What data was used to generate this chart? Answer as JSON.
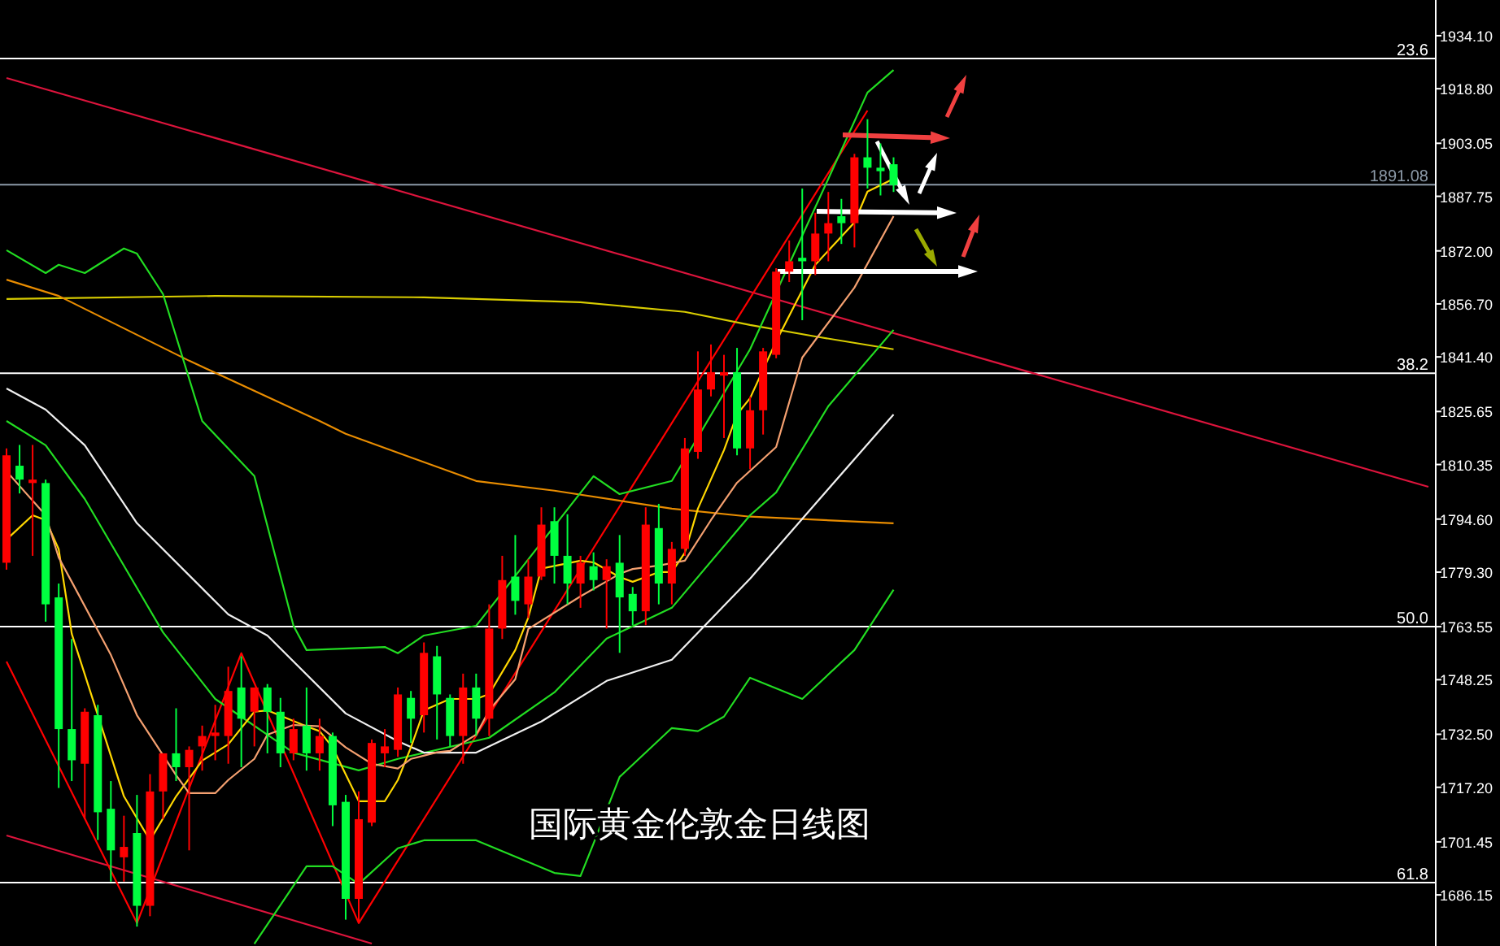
{
  "chart_data": {
    "type": "candlestick",
    "title": "国际黄金伦敦金日线图",
    "categories": [
      null,
      null,
      null,
      null,
      null,
      null,
      null,
      null,
      null,
      null,
      null,
      null,
      null,
      null,
      null,
      null,
      null,
      null,
      null,
      null,
      null,
      null,
      null,
      null,
      null,
      null,
      null,
      null,
      null,
      null,
      null,
      null,
      null,
      null,
      null,
      null,
      null,
      null,
      null,
      null,
      null,
      null,
      null,
      null,
      null,
      null,
      null,
      null,
      null,
      null,
      null,
      null,
      null,
      null,
      null,
      null,
      null,
      null,
      null,
      null,
      null,
      null,
      null,
      null,
      null,
      null,
      null,
      null,
      null,
      null,
      null,
      null,
      null,
      null,
      null,
      null,
      null,
      null,
      null,
      null,
      null,
      null,
      null,
      null,
      null,
      null,
      null,
      null,
      null,
      null,
      null,
      null,
      null,
      null,
      null,
      null,
      null,
      null,
      null,
      null,
      null,
      null,
      null,
      null,
      null,
      null,
      null,
      null,
      null,
      null
    ],
    "ohlc": [
      [
        1782,
        1815,
        1780,
        1813
      ],
      [
        1810,
        1816,
        1802,
        1806
      ],
      [
        1805,
        1816,
        1784,
        1806
      ],
      [
        1805,
        1806,
        1765,
        1770
      ],
      [
        1772,
        1776,
        1717,
        1734
      ],
      [
        1734,
        1760,
        1719,
        1725
      ],
      [
        1724,
        1740,
        1708,
        1739
      ],
      [
        1738,
        1741,
        1702,
        1710
      ],
      [
        1711,
        1719,
        1690,
        1699
      ],
      [
        1697,
        1709,
        1690,
        1700
      ],
      [
        1704,
        1715,
        1677,
        1683
      ],
      [
        1683,
        1721,
        1680,
        1716
      ],
      [
        1716,
        1727,
        1708,
        1727
      ],
      [
        1727,
        1740,
        1719,
        1723
      ],
      [
        1723,
        1729,
        1699,
        1728
      ],
      [
        1729,
        1735,
        1722,
        1732
      ],
      [
        1732,
        1741,
        1725,
        1733
      ],
      [
        1732,
        1752,
        1724,
        1745
      ],
      [
        1746,
        1755,
        1723,
        1737
      ],
      [
        1739,
        1746,
        1729,
        1746
      ],
      [
        1746,
        1747,
        1727,
        1739
      ],
      [
        1739,
        1743,
        1723,
        1727
      ],
      [
        1727,
        1737,
        1725,
        1734
      ],
      [
        1735,
        1746,
        1722,
        1727
      ],
      [
        1727,
        1737,
        1722,
        1732
      ],
      [
        1732,
        1733,
        1706,
        1712
      ],
      [
        1713,
        1715,
        1679,
        1685
      ],
      [
        1685,
        1716,
        1678,
        1708
      ],
      [
        1707,
        1731,
        1706,
        1730
      ],
      [
        1727,
        1734,
        1723,
        1729
      ],
      [
        1728,
        1746,
        1726,
        1744
      ],
      [
        1743,
        1745,
        1730,
        1737
      ],
      [
        1738,
        1759,
        1733,
        1756
      ],
      [
        1755,
        1758,
        1731,
        1744
      ],
      [
        1743,
        1744,
        1729,
        1732
      ],
      [
        1732,
        1750,
        1724,
        1746
      ],
      [
        1746,
        1750,
        1732,
        1737
      ],
      [
        1737,
        1770,
        1732,
        1763
      ],
      [
        1763,
        1784,
        1760,
        1777
      ],
      [
        1778,
        1790,
        1767,
        1771
      ],
      [
        1770,
        1783,
        1766,
        1778
      ],
      [
        1778,
        1798,
        1777,
        1793
      ],
      [
        1794,
        1798,
        1776,
        1784
      ],
      [
        1784,
        1796,
        1770,
        1776
      ],
      [
        1776,
        1784,
        1769,
        1782
      ],
      [
        1781,
        1785,
        1774,
        1777
      ],
      [
        1777,
        1783,
        1763,
        1781
      ],
      [
        1782,
        1790,
        1756,
        1772
      ],
      [
        1773,
        1775,
        1764,
        1768
      ],
      [
        1768,
        1798,
        1764,
        1793
      ],
      [
        1792,
        1799,
        1770,
        1776
      ],
      [
        1776,
        1788,
        1770,
        1786
      ],
      [
        1786,
        1818,
        1784,
        1815
      ],
      [
        1814,
        1843,
        1812,
        1832
      ],
      [
        1832,
        1845,
        1830,
        1837
      ],
      [
        1836,
        1842,
        1818,
        1837
      ],
      [
        1837,
        1844,
        1813,
        1815
      ],
      [
        1815,
        1830,
        1809,
        1826
      ],
      [
        1826,
        1844,
        1819,
        1843
      ],
      [
        1842,
        1867,
        1841,
        1866
      ],
      [
        1866,
        1875,
        1863,
        1869
      ],
      [
        1870,
        1890,
        1852,
        1869
      ],
      [
        1869,
        1883,
        1865,
        1877
      ],
      [
        1877,
        1889,
        1869,
        1880
      ],
      [
        1882,
        1887,
        1874,
        1880
      ],
      [
        1880,
        1900,
        1873,
        1899
      ],
      [
        1899,
        1910,
        1890,
        1896
      ],
      [
        1896,
        1903,
        1888,
        1895
      ],
      [
        1897,
        1899,
        1889,
        1891
      ],
      null,
      null,
      null,
      null,
      null,
      null,
      null,
      null,
      null,
      null,
      null,
      null,
      null,
      null,
      null,
      null,
      null,
      null,
      null,
      null,
      null,
      null,
      null,
      null,
      null,
      null,
      null,
      null,
      null,
      null,
      null,
      null,
      null,
      null,
      null,
      null,
      null,
      null,
      null,
      null,
      null
    ],
    "colors": [
      "#ff0000",
      "#00ff40",
      "#ff0000",
      "#00ff40",
      "#00ff40",
      "#00ff40",
      "#ff0000",
      "#00ff40",
      "#00ff40",
      "#ff0000",
      "#00ff40",
      "#ff0000",
      "#ff0000",
      "#00ff40",
      "#ff0000",
      "#ff0000",
      "#ff0000",
      "#ff0000",
      "#00ff40",
      "#ff0000",
      "#00ff40",
      "#00ff40",
      "#ff0000",
      "#00ff40",
      "#ff0000",
      "#00ff40",
      "#00ff40",
      "#ff0000",
      "#ff0000",
      "#ff0000",
      "#ff0000",
      "#00ff40",
      "#ff0000",
      "#00ff40",
      "#00ff40",
      "#ff0000",
      "#00ff40",
      "#ff0000",
      "#ff0000",
      "#00ff40",
      "#ff0000",
      "#ff0000",
      "#00ff40",
      "#00ff40",
      "#ff0000",
      "#00ff40",
      "#ff0000",
      "#00ff40",
      "#00ff40",
      "#ff0000",
      "#00ff40",
      "#ff0000",
      "#ff0000",
      "#ff0000",
      "#ff0000",
      "#ff0000",
      "#00ff40",
      "#ff0000",
      "#ff0000",
      "#ff0000",
      "#ff0000",
      "#00ff40",
      "#ff0000",
      "#ff0000",
      "#00ff40",
      "#ff0000",
      "#00ff40",
      "#00ff40",
      "#00ff40",
      null,
      null,
      null,
      null,
      null,
      null,
      null,
      null,
      null,
      null,
      null,
      null,
      null,
      null,
      null,
      null,
      null,
      null,
      null,
      null,
      null,
      null,
      null,
      null,
      null,
      null,
      null,
      null,
      null,
      null,
      null,
      null,
      null,
      null,
      null,
      null,
      null,
      null,
      null,
      null,
      null
    ],
    "series": [
      {
        "type": "line",
        "color": "#dc143c",
        "values": [
          1921.9,
          null,
          null,
          null,
          null,
          null,
          null,
          null,
          null,
          null,
          null,
          null,
          null,
          null,
          null,
          null,
          null,
          null,
          null,
          null,
          null,
          null,
          null,
          null,
          null,
          null,
          null,
          null,
          null,
          null,
          null,
          null,
          null,
          null,
          null,
          null,
          null,
          null,
          null,
          null,
          null,
          null,
          null,
          null,
          null,
          null,
          null,
          null,
          null,
          null,
          null,
          null,
          null,
          null,
          null,
          null,
          null,
          null,
          null,
          null,
          null,
          null,
          null,
          null,
          null,
          null,
          null,
          null,
          null,
          null,
          null,
          null,
          null,
          null,
          null,
          null,
          null,
          null,
          null,
          null,
          null,
          null,
          null,
          null,
          null,
          null,
          null,
          null,
          null,
          null,
          null,
          null,
          null,
          null,
          null,
          null,
          null,
          null,
          null,
          null,
          null,
          null,
          null,
          null,
          null,
          null,
          null,
          null,
          null,
          1803.9
        ]
      },
      {
        "type": "line",
        "color": "#dc143c",
        "values": [
          1703.3,
          null,
          null,
          null,
          null,
          null,
          null,
          null,
          null,
          null,
          null,
          null,
          null,
          null,
          null,
          null,
          null,
          null,
          null,
          null,
          null,
          null,
          null,
          null,
          null,
          null,
          null,
          null,
          1672.1,
          null,
          null,
          null,
          null,
          null,
          null,
          null,
          null,
          null,
          null,
          null,
          null,
          null,
          null,
          null,
          null,
          null,
          null,
          null,
          null,
          null,
          null,
          null,
          null,
          null,
          null,
          null,
          null,
          null,
          null,
          null,
          null,
          null,
          null,
          null,
          null,
          null,
          null,
          null,
          null,
          null,
          null,
          null,
          null,
          null,
          null,
          null,
          null,
          null,
          null,
          null,
          null,
          null,
          null,
          null,
          null,
          null,
          null,
          null,
          null,
          null,
          null,
          null,
          null,
          null,
          null,
          null,
          null,
          null,
          null,
          null,
          null,
          null,
          null,
          null,
          null,
          null,
          null,
          null,
          null,
          null
        ]
      },
      {
        "type": "line",
        "color": "#ff0000",
        "values": [
          1753.5,
          null,
          null,
          null,
          null,
          null,
          null,
          null,
          null,
          null,
          1678.0,
          null,
          null,
          null,
          null,
          null,
          null,
          null,
          1755.9,
          null,
          null,
          null,
          null,
          null,
          null,
          null,
          null,
          1678.0,
          null,
          null,
          null,
          null,
          null,
          null,
          null,
          null,
          null,
          null,
          null,
          null,
          null,
          null,
          null,
          null,
          null,
          null,
          null,
          null,
          null,
          null,
          null,
          null,
          null,
          null,
          null,
          null,
          null,
          null,
          null,
          null,
          null,
          null,
          null,
          null,
          null,
          null,
          1912.5,
          null,
          null,
          null,
          null,
          null,
          null,
          null,
          null,
          null,
          null,
          null,
          null,
          null,
          null,
          null,
          null,
          null,
          null,
          null,
          null,
          null,
          null,
          null,
          null,
          null,
          null,
          null,
          null,
          null,
          null,
          null,
          null,
          null,
          null,
          null,
          null,
          null,
          null,
          null,
          null,
          null,
          null,
          null
        ]
      },
      {
        "type": "line",
        "color": "#d8cc00",
        "values": [
          1858.1,
          null,
          null,
          null,
          null,
          null,
          null,
          null,
          null,
          null,
          null,
          null,
          null,
          null,
          null,
          null,
          1859.0,
          null,
          null,
          null,
          null,
          null,
          null,
          null,
          null,
          null,
          null,
          null,
          null,
          null,
          null,
          null,
          1858.6,
          null,
          null,
          null,
          null,
          null,
          null,
          null,
          null,
          null,
          null,
          null,
          1857.2,
          null,
          null,
          null,
          null,
          null,
          null,
          null,
          1854.4,
          null,
          null,
          null,
          null,
          1850.6,
          null,
          null,
          null,
          null,
          1847.3,
          null,
          null,
          null,
          null,
          null,
          1843.6,
          null,
          null,
          null,
          null,
          null,
          null,
          null,
          null,
          null,
          null,
          null,
          null,
          null,
          null,
          null,
          null,
          null,
          null,
          null,
          null,
          null,
          null,
          null,
          null,
          null,
          null,
          null,
          null,
          null,
          null,
          null,
          null,
          null,
          null,
          null,
          null,
          null,
          null,
          null,
          null,
          null
        ]
      },
      {
        "type": "line",
        "color": "#e88c00",
        "values": [
          1863.7,
          null,
          null,
          null,
          1859.0,
          null,
          null,
          null,
          null,
          null,
          null,
          null,
          null,
          null,
          1840.3,
          null,
          null,
          null,
          null,
          null,
          null,
          null,
          null,
          null,
          1822.9,
          null,
          1819.2,
          null,
          null,
          null,
          null,
          null,
          null,
          null,
          null,
          null,
          1805.6,
          null,
          null,
          null,
          null,
          null,
          1802.8,
          null,
          null,
          null,
          null,
          null,
          null,
          null,
          null,
          1797.6,
          null,
          null,
          null,
          null,
          null,
          1795.3,
          null,
          null,
          null,
          null,
          null,
          null,
          null,
          null,
          null,
          null,
          1793.4,
          null,
          null,
          null,
          null,
          null,
          null,
          null,
          null,
          null,
          null,
          null,
          null,
          null,
          null,
          null,
          null,
          null,
          null,
          null,
          null,
          null,
          null,
          null,
          null,
          null,
          null,
          null,
          null,
          null,
          null,
          null,
          null,
          null,
          null,
          null,
          null,
          null,
          null,
          null,
          null,
          null
        ]
      },
      {
        "type": "line",
        "color": "#22dd22",
        "values": [
          1872.2,
          null,
          null,
          1865.6,
          1868.0,
          null,
          1865.6,
          null,
          null,
          1872.7,
          1871.2,
          null,
          1859.5,
          null,
          null,
          1822.9,
          null,
          null,
          null,
          1807.0,
          null,
          null,
          1763.8,
          1756.8,
          null,
          null,
          null,
          null,
          null,
          1757.7,
          1755.9,
          null,
          1761.0,
          null,
          null,
          null,
          1763.8,
          null,
          null,
          null,
          null,
          null,
          null,
          null,
          null,
          1807.0,
          null,
          1801.8,
          null,
          null,
          null,
          1805.6,
          null,
          null,
          null,
          null,
          null,
          1843.6,
          null,
          null,
          null,
          null,
          null,
          1892.8,
          null,
          null,
          1917.7,
          null,
          1924.2,
          null,
          null,
          null,
          null,
          null,
          null,
          null,
          null,
          null,
          null,
          null,
          null,
          null,
          null,
          null,
          null,
          null,
          null,
          null,
          null,
          null,
          null,
          null,
          null,
          null,
          null,
          null,
          null,
          null,
          null,
          null,
          null,
          null,
          null,
          null,
          null,
          null,
          null,
          null,
          null,
          null
        ]
      },
      {
        "type": "line",
        "color": "#22dd22",
        "values": [
          null,
          null,
          null,
          null,
          null,
          null,
          null,
          null,
          null,
          null,
          null,
          null,
          null,
          null,
          null,
          null,
          null,
          null,
          null,
          1672.0,
          null,
          null,
          null,
          1694.4,
          null,
          1694.4,
          null,
          1689.3,
          null,
          null,
          1699.6,
          null,
          1701.9,
          null,
          null,
          null,
          1701.9,
          null,
          null,
          null,
          null,
          null,
          1692.5,
          null,
          1691.6,
          1701.0,
          null,
          1720.2,
          null,
          null,
          null,
          1734.3,
          null,
          1733.4,
          null,
          1737.6,
          null,
          1748.8,
          null,
          null,
          null,
          1742.7,
          null,
          null,
          null,
          1756.8,
          null,
          null,
          1774.2,
          null,
          null,
          null,
          null,
          null,
          null,
          null,
          null,
          null,
          null,
          null,
          null,
          null,
          null,
          null,
          null,
          null,
          null,
          null,
          null,
          null,
          null,
          null,
          null,
          null,
          null,
          null,
          null,
          null,
          null,
          null,
          null,
          null,
          null,
          null,
          null,
          null,
          null,
          null,
          null,
          null
        ]
      },
      {
        "type": "line",
        "color": "#22dd22",
        "values": [
          1822.9,
          null,
          null,
          1815.9,
          null,
          null,
          1800.4,
          null,
          null,
          null,
          null,
          null,
          1761.9,
          null,
          null,
          null,
          1742.7,
          null,
          null,
          null,
          null,
          null,
          1727.2,
          null,
          null,
          null,
          null,
          1722.1,
          null,
          null,
          1725.4,
          null,
          null,
          null,
          null,
          null,
          null,
          1731.5,
          null,
          null,
          null,
          null,
          1744.6,
          null,
          null,
          null,
          1760.1,
          null,
          null,
          null,
          null,
          1769.0,
          null,
          null,
          null,
          null,
          null,
          1795.7,
          null,
          1802.3,
          null,
          null,
          null,
          1827.2,
          null,
          null,
          null,
          null,
          1849.2,
          null,
          null,
          null,
          null,
          null,
          null,
          null,
          null,
          null,
          null,
          null,
          null,
          null,
          null,
          null,
          null,
          null,
          null,
          null,
          null,
          null,
          null,
          null,
          null,
          null,
          null,
          null,
          null,
          null,
          null,
          null,
          null,
          null,
          null,
          null,
          null,
          null,
          null,
          null,
          null,
          null
        ]
      },
      {
        "type": "line",
        "color": "#f0f0f0",
        "values": [
          1832.3,
          null,
          null,
          1826.2,
          null,
          null,
          1815.9,
          null,
          null,
          null,
          1793.4,
          null,
          null,
          null,
          null,
          null,
          null,
          1767.1,
          null,
          null,
          1761.0,
          null,
          null,
          null,
          null,
          null,
          1738.5,
          null,
          null,
          null,
          1730.5,
          null,
          1727.2,
          null,
          null,
          null,
          1727.2,
          null,
          null,
          null,
          null,
          1736.2,
          null,
          null,
          null,
          null,
          1747.9,
          null,
          null,
          null,
          null,
          1754.0,
          null,
          null,
          null,
          null,
          null,
          1777.4,
          null,
          null,
          null,
          null,
          1799.0,
          null,
          null,
          null,
          null,
          null,
          1824.8,
          null,
          null,
          null,
          null,
          null,
          null,
          null,
          null,
          null,
          null,
          null,
          null,
          null,
          null,
          null,
          null,
          null,
          null,
          null,
          null,
          null,
          null,
          null,
          null,
          null,
          null,
          null,
          null,
          null,
          null,
          null,
          null,
          null,
          null,
          null,
          null,
          null,
          null,
          null,
          null,
          null
        ]
      },
      {
        "type": "line",
        "color": "#ffd700",
        "values": [
          1788.7,
          null,
          1795.7,
          1794.3,
          1785.9,
          1761.5,
          null,
          null,
          null,
          1714.6,
          null,
          1701.9,
          null,
          1714.6,
          null,
          1724.9,
          null,
          1729.6,
          null,
          1739.0,
          1739.4,
          null,
          null,
          1734.8,
          1733.4,
          1728.7,
          null,
          1713.2,
          null,
          1713.2,
          1719.3,
          1728.7,
          1739.4,
          null,
          1742.7,
          null,
          1742.7,
          1744.1,
          null,
          1756.8,
          1766.2,
          1780.3,
          null,
          null,
          1782.6,
          1782.1,
          null,
          1777.9,
          1776.5,
          null,
          1779.3,
          1779.3,
          1784.9,
          1797.6,
          null,
          1814.5,
          1824.8,
          1829.5,
          null,
          1845.9,
          null,
          null,
          1868.0,
          null,
          null,
          1880.2,
          1889.1,
          null,
          1892.8,
          null,
          null,
          null,
          null,
          null,
          null,
          null,
          null,
          null,
          null,
          null,
          null,
          null,
          null,
          null,
          null,
          null,
          null,
          null,
          null,
          null,
          null,
          null,
          null,
          null,
          null,
          null,
          null,
          null,
          null,
          null,
          null,
          null,
          null,
          null,
          null,
          null,
          null,
          null,
          null,
          null
        ]
      },
      {
        "type": "line",
        "color": "#f4a070",
        "values": [
          1808.4,
          null,
          null,
          1795.7,
          1783.5,
          1776.5,
          null,
          null,
          1755.4,
          null,
          1738.0,
          null,
          null,
          1720.7,
          1715.5,
          null,
          1715.5,
          1719.3,
          null,
          1725.4,
          1732.4,
          null,
          1735.2,
          null,
          1734.8,
          null,
          1728.7,
          null,
          1724.0,
          null,
          1722.6,
          1725.4,
          null,
          1727.3,
          1727.7,
          null,
          1732.4,
          1739.4,
          null,
          1748.4,
          1762.9,
          null,
          null,
          null,
          1772.3,
          null,
          null,
          1778.8,
          1780.2,
          null,
          1781.2,
          null,
          1782.6,
          null,
          1794.3,
          null,
          1805.1,
          null,
          null,
          1815.4,
          null,
          1841.2,
          null,
          null,
          null,
          1861.4,
          null,
          null,
          1882.0,
          null,
          null,
          null,
          null,
          null,
          null,
          null,
          null,
          null,
          null,
          null,
          null,
          null,
          null,
          null,
          null,
          null,
          null,
          null,
          null,
          null,
          null,
          null,
          null,
          null,
          null,
          null,
          null,
          null,
          null,
          null,
          null,
          null,
          null,
          null,
          null,
          null,
          null,
          null,
          null,
          null
        ]
      }
    ],
    "ref_lines": [
      {
        "axis": "y",
        "value": 1927.5,
        "color": "#ffffff"
      },
      {
        "axis": "y",
        "value": 1836.7,
        "color": "#ffffff"
      },
      {
        "axis": "y",
        "value": 1763.55,
        "color": "#ffffff"
      },
      {
        "axis": "y",
        "value": 1689.7,
        "color": "#ffffff"
      },
      {
        "axis": "y",
        "value": 1891.08,
        "label": "1891.08",
        "color": "#8c9aa8"
      }
    ],
    "annotations": [
      {
        "text": "23.6",
        "y": 1927.5
      },
      {
        "text": "38.2",
        "y": 1836.7
      },
      {
        "text": "50.0",
        "y": 1763.55
      },
      {
        "text": "61.8",
        "y": 1689.7
      }
    ],
    "ylim": [
      1671.4,
      1944.4
    ],
    "yticks": [
      {
        "value": 1934.1,
        "label": "1934.10"
      },
      {
        "value": 1918.8,
        "label": "1918.80"
      },
      {
        "value": 1903.05,
        "label": "1903.05"
      },
      {
        "value": 1887.75,
        "label": "1887.75"
      },
      {
        "value": 1872.0,
        "label": "1872.00"
      },
      {
        "value": 1856.7,
        "label": "1856.70"
      },
      {
        "value": 1841.4,
        "label": "1841.40"
      },
      {
        "value": 1825.65,
        "label": "1825.65"
      },
      {
        "value": 1810.35,
        "label": "1810.35"
      },
      {
        "value": 1794.6,
        "label": "1794.60"
      },
      {
        "value": 1779.3,
        "label": "1779.30"
      },
      {
        "value": 1763.55,
        "label": "1763.55"
      },
      {
        "value": 1748.25,
        "label": "1748.25"
      },
      {
        "value": 1732.5,
        "label": "1732.50"
      },
      {
        "value": 1717.2,
        "label": "1717.20"
      },
      {
        "value": 1701.45,
        "label": "1701.45"
      },
      {
        "value": 1686.15,
        "label": "1686.15"
      }
    ],
    "tick_labels": "y"
  }
}
